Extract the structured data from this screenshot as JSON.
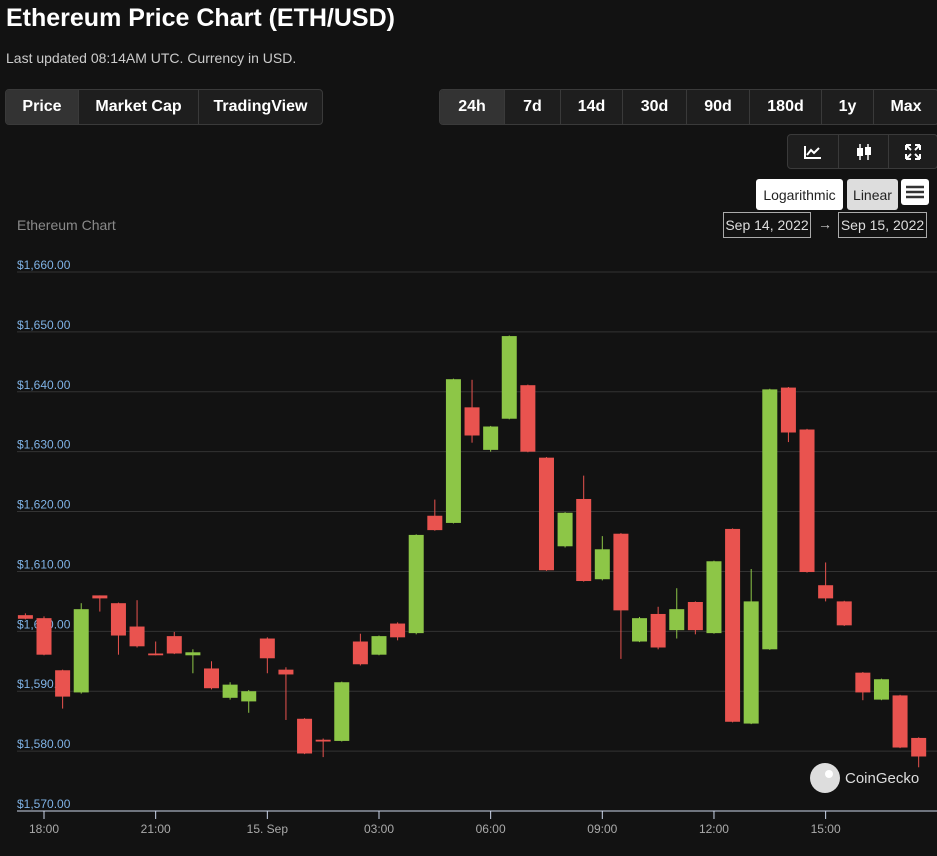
{
  "header": {
    "title": "Ethereum Price Chart (ETH/USD)",
    "subtitle": "Last updated 08:14AM UTC. Currency in USD."
  },
  "tabs": [
    "Price",
    "Market Cap",
    "TradingView"
  ],
  "ranges": [
    "24h",
    "7d",
    "14d",
    "30d",
    "90d",
    "180d",
    "1y",
    "Max"
  ],
  "scale_options": [
    "Logarithmic",
    "Linear"
  ],
  "date_range": {
    "from": "Sep 14, 2022",
    "to": "Sep 15, 2022"
  },
  "chart_data": {
    "type": "candlestick",
    "title": "Ethereum Chart",
    "watermark": "CoinGecko",
    "up_color": "#8dc647",
    "down_color": "#e9534f",
    "grid": true,
    "ylim": [
      1570,
      1660
    ],
    "yticks": [
      {
        "value": 1570,
        "label": "$1,570.00"
      },
      {
        "value": 1580,
        "label": "$1,580.00"
      },
      {
        "value": 1590,
        "label": "$1,590.00"
      },
      {
        "value": 1600,
        "label": "$1,600.00"
      },
      {
        "value": 1610,
        "label": "$1,610.00"
      },
      {
        "value": 1620,
        "label": "$1,620.00"
      },
      {
        "value": 1630,
        "label": "$1,630.00"
      },
      {
        "value": 1640,
        "label": "$1,640.00"
      },
      {
        "value": 1650,
        "label": "$1,650.00"
      },
      {
        "value": 1660,
        "label": "$1,660.00"
      }
    ],
    "categories": [
      null,
      "18:00",
      null,
      null,
      null,
      null,
      null,
      "21:00",
      null,
      null,
      null,
      null,
      null,
      "15. Sep",
      null,
      null,
      null,
      null,
      null,
      "03:00",
      null,
      null,
      null,
      null,
      null,
      "06:00",
      null,
      null,
      null,
      null,
      null,
      "09:00",
      null,
      null,
      null,
      null,
      null,
      "12:00",
      null,
      null,
      null,
      null,
      null,
      "15:00",
      null,
      null,
      null,
      null,
      null
    ],
    "open": [
      1602.7,
      1602.2,
      1593.5,
      1589.8,
      1606,
      1604.7,
      1600.8,
      1596.3,
      1599.2,
      1596,
      1593.8,
      1588.9,
      1588.3,
      1598.8,
      1593.6,
      1585.4,
      1581.9,
      1581.7,
      1598.3,
      1596.1,
      1601.3,
      1599.7,
      1619.3,
      1618.1,
      1637.4,
      1630.3,
      1635.5,
      1641.1,
      1629,
      1614.2,
      1622.1,
      1608.7,
      1616.3,
      1598.3,
      1602.9,
      1600.2,
      1604.9,
      1599.7,
      1617.1,
      1584.6,
      1597,
      1640.7,
      1633.7,
      1607.7,
      1605,
      1593.1,
      1588.6,
      1589.3,
      1582.2
    ],
    "high": [
      1603,
      1602.5,
      1593.6,
      1604.7,
      1606,
      1604.8,
      1605.2,
      1598.3,
      1599.9,
      1597,
      1595,
      1591.5,
      1590.2,
      1599,
      1594,
      1585.5,
      1582.1,
      1591.6,
      1599.6,
      1599.3,
      1601.5,
      1616.2,
      1622,
      1642.2,
      1642,
      1634.3,
      1649.4,
      1641.2,
      1629.1,
      1619.9,
      1626,
      1615.9,
      1616.4,
      1602.4,
      1604.1,
      1607.2,
      1605,
      1611.8,
      1617.2,
      1610.4,
      1640.5,
      1640.8,
      1633.8,
      1611.5,
      1605.1,
      1593.2,
      1592.1,
      1589.4,
      1582.3
    ],
    "low": [
      1602,
      1596,
      1587.1,
      1589.6,
      1603.3,
      1596.1,
      1597.3,
      1596,
      1596.2,
      1593,
      1590.3,
      1588.6,
      1586.4,
      1593,
      1585.2,
      1579.5,
      1579,
      1581.6,
      1594.3,
      1596,
      1598.5,
      1599.5,
      1616.8,
      1618,
      1631.5,
      1630,
      1635.4,
      1629.9,
      1610.1,
      1614,
      1608.3,
      1608.5,
      1595.4,
      1598.2,
      1597,
      1598.8,
      1599.5,
      1599.6,
      1584.8,
      1584.5,
      1596.9,
      1631.6,
      1609.8,
      1605,
      1600.9,
      1588.5,
      1588.5,
      1580.5,
      1577.3
    ],
    "close": [
      1602.1,
      1596.1,
      1589.1,
      1603.7,
      1605.5,
      1599.3,
      1597.5,
      1596,
      1596.3,
      1596.5,
      1590.5,
      1591.1,
      1590,
      1595.5,
      1592.8,
      1579.6,
      1581.6,
      1591.5,
      1594.5,
      1599.2,
      1599,
      1616.1,
      1616.9,
      1642.1,
      1632.7,
      1634.2,
      1649.3,
      1630,
      1610.2,
      1619.8,
      1608.4,
      1613.7,
      1603.5,
      1602.2,
      1597.3,
      1603.7,
      1600.2,
      1611.7,
      1584.9,
      1605,
      1640.4,
      1633.2,
      1609.9,
      1605.5,
      1601,
      1589.8,
      1592,
      1580.6,
      1579.1
    ]
  }
}
